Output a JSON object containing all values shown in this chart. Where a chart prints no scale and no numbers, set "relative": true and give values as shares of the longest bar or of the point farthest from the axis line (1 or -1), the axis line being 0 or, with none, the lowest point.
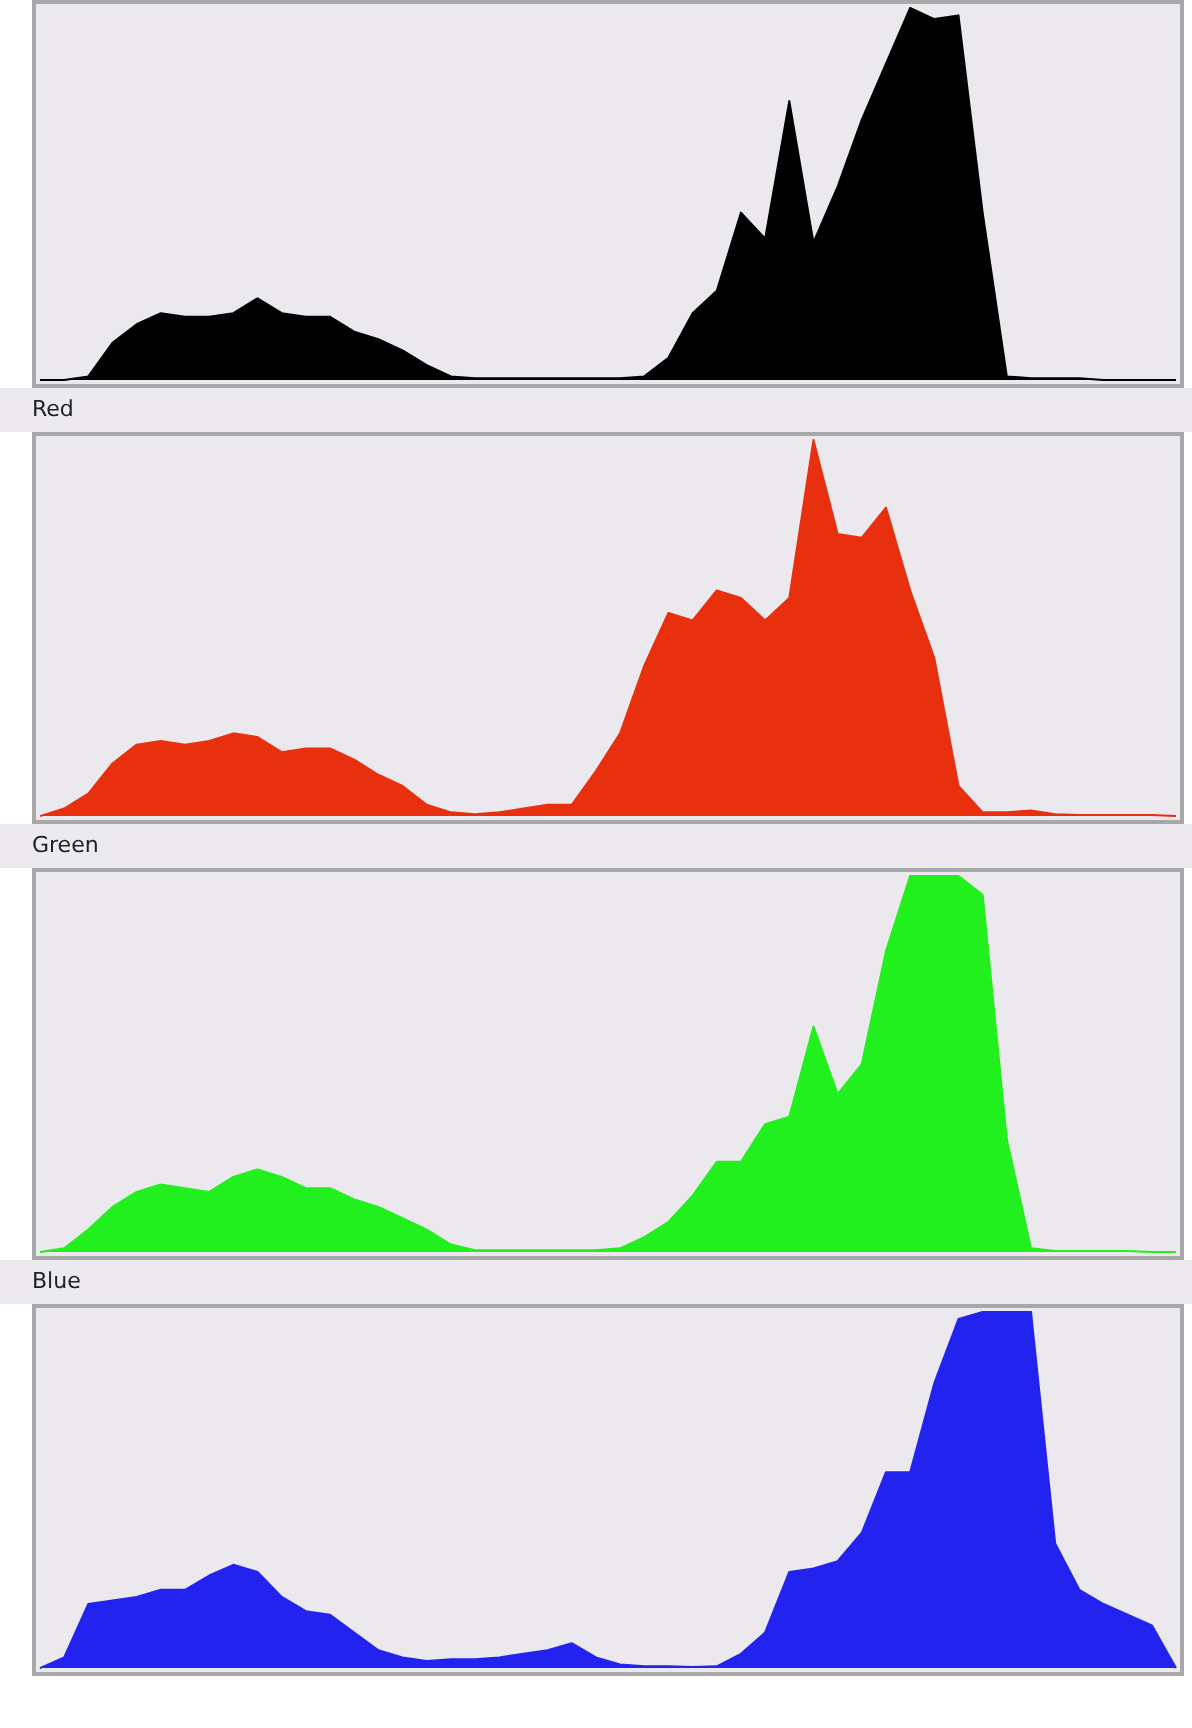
{
  "chart_data": [
    {
      "type": "area",
      "relative": true,
      "tick_labels": false,
      "categories": [
        null,
        null,
        null,
        null,
        null,
        null,
        null,
        null,
        null,
        null,
        null,
        null,
        null,
        null,
        null,
        null,
        null,
        null,
        null,
        null,
        null,
        null,
        null,
        null,
        null,
        null,
        null,
        null,
        null,
        null,
        null,
        null,
        null,
        null,
        null,
        null,
        null,
        null,
        null,
        null,
        null,
        null,
        null,
        null,
        null,
        null,
        null,
        null
      ],
      "series": [
        {
          "color": "#000000",
          "values": [
            0,
            0,
            0.01,
            0.1,
            0.15,
            0.18,
            0.17,
            0.17,
            0.18,
            0.22,
            0.18,
            0.17,
            0.17,
            0.13,
            0.11,
            0.08,
            0.04,
            0.01,
            0.005,
            0.005,
            0.005,
            0.005,
            0.005,
            0.005,
            0.005,
            0.01,
            0.06,
            0.18,
            0.24,
            0.45,
            0.38,
            0.75,
            0.37,
            0.52,
            0.7,
            0.85,
            1,
            0.97,
            0.98,
            0.45,
            0.01,
            0.005,
            0.005,
            0.005,
            0,
            0,
            0,
            0
          ]
        }
      ]
    },
    {
      "type": "area",
      "relative": true,
      "tick_labels": false,
      "title": "Red",
      "categories": [
        null,
        null,
        null,
        null,
        null,
        null,
        null,
        null,
        null,
        null,
        null,
        null,
        null,
        null,
        null,
        null,
        null,
        null,
        null,
        null,
        null,
        null,
        null,
        null,
        null,
        null,
        null,
        null,
        null,
        null,
        null,
        null,
        null,
        null,
        null,
        null,
        null,
        null,
        null,
        null,
        null,
        null,
        null,
        null,
        null,
        null,
        null,
        null
      ],
      "series": [
        {
          "color": "#e8300f",
          "values": [
            0,
            0.02,
            0.06,
            0.14,
            0.19,
            0.2,
            0.19,
            0.2,
            0.22,
            0.21,
            0.17,
            0.18,
            0.18,
            0.15,
            0.11,
            0.08,
            0.03,
            0.01,
            0.005,
            0.01,
            0.02,
            0.03,
            0.03,
            0.12,
            0.22,
            0.4,
            0.54,
            0.52,
            0.6,
            0.58,
            0.52,
            0.58,
            1,
            0.75,
            0.74,
            0.82,
            0.6,
            0.42,
            0.08,
            0.01,
            0.01,
            0.015,
            0.005,
            0.003,
            0.003,
            0.003,
            0.003,
            0
          ]
        }
      ]
    },
    {
      "type": "area",
      "relative": true,
      "tick_labels": false,
      "title": "Green",
      "categories": [
        null,
        null,
        null,
        null,
        null,
        null,
        null,
        null,
        null,
        null,
        null,
        null,
        null,
        null,
        null,
        null,
        null,
        null,
        null,
        null,
        null,
        null,
        null,
        null,
        null,
        null,
        null,
        null,
        null,
        null,
        null,
        null,
        null,
        null,
        null,
        null,
        null,
        null,
        null,
        null,
        null,
        null,
        null,
        null,
        null,
        null,
        null,
        null
      ],
      "series": [
        {
          "color": "#22f01e",
          "values": [
            0,
            0.01,
            0.06,
            0.12,
            0.16,
            0.18,
            0.17,
            0.16,
            0.2,
            0.22,
            0.2,
            0.17,
            0.17,
            0.14,
            0.12,
            0.09,
            0.06,
            0.02,
            0.005,
            0.005,
            0.005,
            0.005,
            0.005,
            0.005,
            0.01,
            0.04,
            0.08,
            0.15,
            0.24,
            0.24,
            0.34,
            0.36,
            0.6,
            0.42,
            0.5,
            0.8,
            1,
            1,
            1,
            0.95,
            0.3,
            0.01,
            0.003,
            0.003,
            0.003,
            0.003,
            0,
            0
          ]
        }
      ]
    },
    {
      "type": "area",
      "relative": true,
      "tick_labels": false,
      "title": "Blue",
      "categories": [
        null,
        null,
        null,
        null,
        null,
        null,
        null,
        null,
        null,
        null,
        null,
        null,
        null,
        null,
        null,
        null,
        null,
        null,
        null,
        null,
        null,
        null,
        null,
        null,
        null,
        null,
        null,
        null,
        null,
        null,
        null,
        null,
        null,
        null,
        null,
        null,
        null,
        null,
        null,
        null,
        null,
        null,
        null,
        null,
        null,
        null,
        null,
        null
      ],
      "series": [
        {
          "color": "#2323f0",
          "values": [
            0,
            0.03,
            0.18,
            0.19,
            0.2,
            0.22,
            0.22,
            0.26,
            0.29,
            0.27,
            0.2,
            0.16,
            0.15,
            0.1,
            0.05,
            0.03,
            0.02,
            0.025,
            0.025,
            0.03,
            0.04,
            0.05,
            0.07,
            0.03,
            0.01,
            0.005,
            0.005,
            0.003,
            0.005,
            0.04,
            0.1,
            0.27,
            0.28,
            0.3,
            0.38,
            0.55,
            0.55,
            0.8,
            0.98,
            1,
            1,
            1,
            0.35,
            0.22,
            0.18,
            0.15,
            0.12,
            0
          ]
        }
      ]
    }
  ]
}
